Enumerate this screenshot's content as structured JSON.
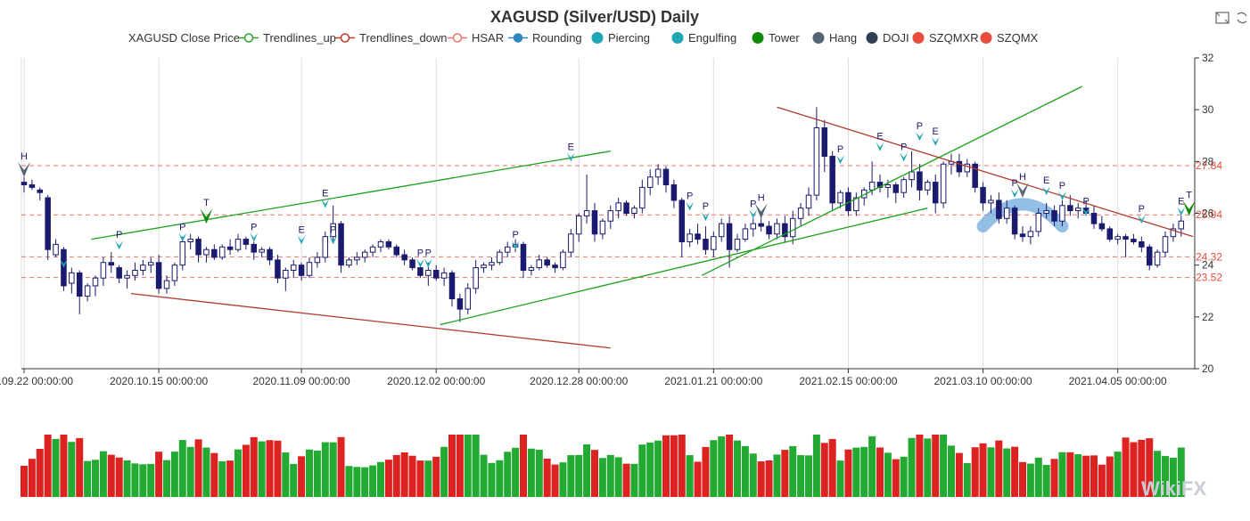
{
  "chart_data": {
    "type": "candlestick",
    "title": "XAGUSD (Silver/USD) Daily",
    "legend": [
      {
        "name": "XAGUSD Close Price",
        "style": "none",
        "color": "#333333"
      },
      {
        "name": "Trendlines_up",
        "style": "line-hollow",
        "color": "#2ca02c"
      },
      {
        "name": "Trendlines_down",
        "style": "line-hollow",
        "color": "#c0392b"
      },
      {
        "name": "HSAR",
        "style": "line-hollow",
        "color": "#e8736b"
      },
      {
        "name": "Rounding",
        "style": "line-filled",
        "color": "#2e86c1"
      },
      {
        "name": "Piercing",
        "style": "dot",
        "color": "#1fa7b3"
      },
      {
        "name": "Engulfing",
        "style": "dot",
        "color": "#1fa7b3"
      },
      {
        "name": "Tower",
        "style": "dot",
        "color": "#138a07"
      },
      {
        "name": "Hang",
        "style": "dot",
        "color": "#566573"
      },
      {
        "name": "DOJI",
        "style": "dot",
        "color": "#2e4053"
      },
      {
        "name": "SZQMXR",
        "style": "dot",
        "color": "#e74c3c"
      },
      {
        "name": "SZQMX",
        "style": "dot",
        "color": "#e74c3c"
      }
    ],
    "legend_position": "top-center",
    "y_axis": {
      "min": 20,
      "max": 32,
      "ticks": [
        20,
        22,
        24,
        26,
        28,
        30,
        32
      ],
      "position": "right"
    },
    "x_axis": {
      "ticks": [
        "2020.09.22 00:00:00",
        "2020.10.15 00:00:00",
        "2020.11.09 00:00:00",
        "2020.12.02 00:00:00",
        "2020.12.28 00:00:00",
        "2021.01.21 00:00:00",
        "2021.02.15 00:00:00",
        "2021.03.10 00:00:00",
        "2021.04.05 00:00:00"
      ]
    },
    "x_tick_bar_index": [
      0,
      17,
      35,
      52,
      70,
      87,
      104,
      121,
      138
    ],
    "bar_count": 148,
    "grid": {
      "vertical": true,
      "horizontal": false
    },
    "hsar_levels": [
      {
        "value": 27.84,
        "label": "27.84"
      },
      {
        "value": 25.94,
        "label": "25.94"
      },
      {
        "value": 24.32,
        "label": "24.32"
      },
      {
        "value": 23.52,
        "label": "23.52"
      }
    ],
    "trendlines_up": [
      {
        "x1": 8.5,
        "y1": 25.0,
        "x2": 74,
        "y2": 28.4
      },
      {
        "x1": 52.5,
        "y1": 21.7,
        "x2": 114,
        "y2": 26.2
      },
      {
        "x1": 85.5,
        "y1": 23.6,
        "x2": 133.5,
        "y2": 30.9
      }
    ],
    "trendlines_down": [
      {
        "x1": 13.5,
        "y1": 22.9,
        "x2": 74,
        "y2": 20.8
      },
      {
        "x1": 95,
        "y1": 30.1,
        "x2": 147.5,
        "y2": 25.1
      }
    ],
    "rounding": {
      "from_index": 121,
      "to_index": 131,
      "low": 25.5,
      "peak": 26.35
    },
    "markers": [
      {
        "type": "Hang",
        "letter": "H",
        "index": 0,
        "y": 27.4
      },
      {
        "type": "Piercing",
        "letter": "P",
        "index": 5,
        "y": 23.9
      },
      {
        "type": "Piercing",
        "letter": "P",
        "index": 12,
        "y": 24.6
      },
      {
        "type": "Piercing",
        "letter": "P",
        "index": 20,
        "y": 24.9
      },
      {
        "type": "Tower",
        "letter": "T",
        "index": 23,
        "y": 25.6
      },
      {
        "type": "Piercing",
        "letter": "P",
        "index": 29,
        "y": 24.9
      },
      {
        "type": "Engulfing",
        "letter": "E",
        "index": 35,
        "y": 24.8
      },
      {
        "type": "Engulfing",
        "letter": "E",
        "index": 38,
        "y": 26.2
      },
      {
        "type": "Piercing",
        "letter": "P",
        "index": 39,
        "y": 24.8
      },
      {
        "type": "Piercing",
        "letter": "P",
        "index": 50,
        "y": 23.9
      },
      {
        "type": "Piercing",
        "letter": "P",
        "index": 51,
        "y": 23.9
      },
      {
        "type": "Piercing",
        "letter": "P",
        "index": 62,
        "y": 24.6
      },
      {
        "type": "Engulfing",
        "letter": "E",
        "index": 69,
        "y": 28.0
      },
      {
        "type": "Piercing",
        "letter": "P",
        "index": 84,
        "y": 26.1
      },
      {
        "type": "Piercing",
        "letter": "P",
        "index": 86,
        "y": 25.7
      },
      {
        "type": "Piercing",
        "letter": "P",
        "index": 92,
        "y": 25.8
      },
      {
        "type": "Hang",
        "letter": "H",
        "index": 93,
        "y": 25.8
      },
      {
        "type": "Piercing",
        "letter": "P",
        "index": 103,
        "y": 27.9
      },
      {
        "type": "Engulfing",
        "letter": "E",
        "index": 108,
        "y": 28.4
      },
      {
        "type": "Piercing",
        "letter": "P",
        "index": 111,
        "y": 28.0
      },
      {
        "type": "Piercing",
        "letter": "P",
        "index": 113,
        "y": 28.8
      },
      {
        "type": "Engulfing",
        "letter": "E",
        "index": 115,
        "y": 28.6
      },
      {
        "type": "Piercing",
        "letter": "P",
        "index": 125,
        "y": 26.6
      },
      {
        "type": "Hang",
        "letter": "H",
        "index": 126,
        "y": 26.6
      },
      {
        "type": "Engulfing",
        "letter": "E",
        "index": 129,
        "y": 26.7
      },
      {
        "type": "Piercing",
        "letter": "P",
        "index": 131,
        "y": 26.5
      },
      {
        "type": "Piercing",
        "letter": "P",
        "index": 134,
        "y": 25.9
      },
      {
        "type": "Piercing",
        "letter": "P",
        "index": 141,
        "y": 25.6
      },
      {
        "type": "Engulfing",
        "letter": "E",
        "index": 146,
        "y": 25.9
      },
      {
        "type": "Tower",
        "letter": "T",
        "index": 147,
        "y": 25.9
      }
    ],
    "candles_ohlc": [
      [
        27.2,
        27.4,
        26.8,
        27.1
      ],
      [
        27.1,
        27.3,
        26.9,
        27.0
      ],
      [
        26.9,
        27.0,
        26.5,
        26.8
      ],
      [
        26.6,
        26.7,
        24.2,
        24.6
      ],
      [
        24.4,
        25.0,
        24.3,
        24.8
      ],
      [
        24.6,
        24.7,
        23.0,
        23.2
      ],
      [
        23.3,
        23.9,
        22.9,
        23.7
      ],
      [
        23.7,
        23.8,
        22.1,
        22.8
      ],
      [
        22.8,
        23.3,
        22.6,
        23.2
      ],
      [
        23.2,
        23.6,
        22.8,
        23.5
      ],
      [
        23.5,
        24.3,
        23.2,
        24.1
      ],
      [
        24.1,
        24.5,
        23.7,
        24.0
      ],
      [
        23.9,
        24.0,
        23.3,
        23.5
      ],
      [
        23.5,
        23.8,
        23.1,
        23.6
      ],
      [
        23.6,
        24.1,
        23.4,
        23.8
      ],
      [
        23.8,
        24.2,
        23.6,
        24.0
      ],
      [
        24.0,
        24.3,
        23.7,
        24.1
      ],
      [
        24.1,
        24.4,
        22.9,
        23.1
      ],
      [
        23.1,
        23.6,
        22.9,
        23.4
      ],
      [
        23.4,
        24.1,
        23.2,
        24.0
      ],
      [
        24.0,
        25.1,
        23.8,
        24.9
      ],
      [
        24.9,
        25.2,
        24.6,
        25.0
      ],
      [
        25.0,
        25.1,
        24.1,
        24.4
      ],
      [
        24.4,
        24.7,
        24.1,
        24.6
      ],
      [
        24.6,
        24.8,
        24.2,
        24.3
      ],
      [
        24.3,
        24.8,
        24.2,
        24.7
      ],
      [
        24.7,
        25.0,
        24.4,
        24.6
      ],
      [
        24.6,
        25.2,
        24.5,
        25.0
      ],
      [
        25.0,
        25.1,
        24.6,
        24.8
      ],
      [
        24.8,
        24.9,
        24.2,
        24.5
      ],
      [
        24.5,
        24.7,
        24.3,
        24.6
      ],
      [
        24.6,
        24.7,
        24.0,
        24.2
      ],
      [
        24.2,
        24.4,
        23.3,
        23.5
      ],
      [
        23.5,
        23.9,
        23.0,
        23.8
      ],
      [
        23.8,
        24.2,
        23.5,
        24.0
      ],
      [
        24.0,
        24.1,
        23.4,
        23.6
      ],
      [
        23.6,
        24.3,
        23.5,
        24.1
      ],
      [
        24.1,
        24.5,
        23.9,
        24.3
      ],
      [
        24.3,
        25.3,
        24.1,
        25.1
      ],
      [
        25.1,
        26.3,
        24.9,
        25.6
      ],
      [
        25.6,
        25.7,
        23.7,
        24.0
      ],
      [
        24.0,
        24.3,
        23.9,
        24.2
      ],
      [
        24.2,
        24.5,
        24.0,
        24.3
      ],
      [
        24.3,
        24.6,
        24.1,
        24.5
      ],
      [
        24.5,
        24.8,
        24.3,
        24.7
      ],
      [
        24.7,
        25.0,
        24.5,
        24.9
      ],
      [
        24.9,
        25.0,
        24.6,
        24.7
      ],
      [
        24.7,
        24.8,
        24.3,
        24.4
      ],
      [
        24.4,
        24.6,
        24.0,
        24.2
      ],
      [
        24.2,
        24.3,
        23.8,
        23.9
      ],
      [
        23.9,
        24.0,
        23.5,
        23.6
      ],
      [
        23.6,
        24.1,
        23.2,
        23.8
      ],
      [
        23.8,
        24.0,
        23.4,
        23.5
      ],
      [
        23.5,
        23.9,
        23.2,
        23.7
      ],
      [
        23.7,
        23.8,
        22.4,
        22.7
      ],
      [
        22.7,
        22.9,
        21.8,
        22.3
      ],
      [
        22.3,
        23.3,
        22.1,
        23.1
      ],
      [
        23.1,
        24.2,
        22.9,
        23.9
      ],
      [
        23.9,
        24.1,
        23.7,
        24.0
      ],
      [
        24.0,
        24.3,
        23.8,
        24.1
      ],
      [
        24.1,
        24.6,
        24.0,
        24.5
      ],
      [
        24.5,
        24.9,
        24.3,
        24.7
      ],
      [
        24.7,
        25.0,
        24.5,
        24.8
      ],
      [
        24.8,
        24.9,
        23.5,
        23.8
      ],
      [
        23.8,
        24.0,
        23.6,
        23.9
      ],
      [
        23.9,
        24.4,
        23.8,
        24.2
      ],
      [
        24.2,
        24.3,
        23.9,
        24.0
      ],
      [
        24.0,
        24.1,
        23.7,
        23.9
      ],
      [
        23.9,
        24.6,
        23.8,
        24.5
      ],
      [
        24.5,
        25.4,
        24.3,
        25.2
      ],
      [
        25.2,
        26.0,
        24.9,
        25.9
      ],
      [
        25.9,
        27.5,
        25.6,
        26.1
      ],
      [
        26.1,
        26.4,
        24.9,
        25.2
      ],
      [
        25.2,
        25.8,
        25.0,
        25.7
      ],
      [
        25.7,
        26.3,
        25.4,
        26.1
      ],
      [
        26.1,
        26.6,
        25.8,
        26.4
      ],
      [
        26.4,
        26.5,
        25.9,
        26.0
      ],
      [
        26.0,
        26.3,
        25.8,
        26.2
      ],
      [
        26.2,
        27.3,
        26.0,
        27.0
      ],
      [
        27.0,
        27.7,
        26.7,
        27.4
      ],
      [
        27.4,
        27.9,
        27.1,
        27.7
      ],
      [
        27.7,
        27.8,
        26.8,
        27.1
      ],
      [
        27.1,
        27.3,
        26.2,
        26.5
      ],
      [
        26.5,
        26.6,
        24.3,
        24.9
      ],
      [
        24.9,
        25.4,
        24.7,
        25.2
      ],
      [
        25.2,
        25.6,
        24.8,
        25.0
      ],
      [
        25.0,
        25.5,
        24.4,
        24.6
      ],
      [
        24.6,
        25.3,
        24.3,
        25.1
      ],
      [
        25.1,
        25.8,
        24.9,
        25.6
      ],
      [
        25.6,
        25.9,
        23.9,
        24.6
      ],
      [
        24.6,
        25.2,
        24.5,
        25.0
      ],
      [
        25.0,
        25.6,
        24.9,
        25.4
      ],
      [
        25.4,
        25.8,
        25.1,
        25.6
      ],
      [
        25.6,
        26.0,
        25.3,
        25.5
      ],
      [
        25.5,
        25.7,
        25.0,
        25.2
      ],
      [
        25.2,
        25.8,
        25.0,
        25.6
      ],
      [
        25.6,
        25.9,
        24.9,
        25.1
      ],
      [
        25.1,
        26.1,
        24.8,
        25.8
      ],
      [
        25.8,
        26.4,
        25.5,
        26.2
      ],
      [
        26.2,
        27.0,
        25.9,
        26.7
      ],
      [
        26.7,
        30.1,
        26.5,
        29.3
      ],
      [
        29.3,
        29.6,
        27.6,
        28.2
      ],
      [
        28.2,
        28.4,
        26.1,
        26.4
      ],
      [
        26.4,
        26.9,
        26.2,
        26.8
      ],
      [
        26.8,
        27.0,
        25.9,
        26.1
      ],
      [
        26.1,
        26.8,
        25.9,
        26.6
      ],
      [
        26.6,
        27.0,
        26.3,
        26.9
      ],
      [
        26.9,
        28.0,
        26.7,
        27.2
      ],
      [
        27.2,
        27.5,
        26.8,
        27.0
      ],
      [
        27.0,
        27.3,
        26.6,
        27.1
      ],
      [
        27.1,
        27.2,
        26.4,
        26.8
      ],
      [
        26.8,
        27.4,
        26.6,
        27.3
      ],
      [
        27.3,
        28.4,
        27.0,
        27.6
      ],
      [
        27.6,
        27.9,
        26.5,
        26.9
      ],
      [
        26.9,
        27.3,
        26.7,
        27.2
      ],
      [
        27.2,
        27.5,
        26.0,
        26.4
      ],
      [
        26.4,
        28.0,
        26.2,
        27.9
      ],
      [
        27.9,
        28.3,
        27.5,
        28.0
      ],
      [
        28.0,
        28.3,
        27.4,
        27.6
      ],
      [
        27.6,
        28.1,
        27.4,
        27.9
      ],
      [
        27.9,
        28.0,
        26.8,
        27.0
      ],
      [
        27.0,
        27.2,
        26.1,
        26.4
      ],
      [
        26.4,
        26.7,
        26.0,
        26.5
      ],
      [
        26.5,
        26.8,
        25.6,
        25.8
      ],
      [
        25.8,
        26.5,
        25.6,
        26.2
      ],
      [
        26.2,
        26.3,
        25.0,
        25.2
      ],
      [
        25.2,
        25.5,
        24.9,
        25.1
      ],
      [
        25.1,
        25.5,
        24.8,
        25.3
      ],
      [
        25.3,
        26.2,
        25.1,
        26.0
      ],
      [
        26.0,
        26.4,
        25.8,
        26.1
      ],
      [
        26.1,
        26.3,
        25.5,
        25.7
      ],
      [
        25.7,
        26.5,
        25.5,
        26.3
      ],
      [
        26.3,
        26.7,
        25.9,
        26.1
      ],
      [
        26.1,
        26.4,
        25.8,
        26.2
      ],
      [
        26.2,
        26.5,
        25.9,
        26.0
      ],
      [
        26.0,
        26.3,
        25.4,
        25.6
      ],
      [
        25.6,
        25.9,
        25.3,
        25.4
      ],
      [
        25.4,
        25.5,
        24.9,
        25.0
      ],
      [
        25.0,
        25.2,
        24.8,
        25.1
      ],
      [
        25.1,
        25.2,
        24.3,
        25.0
      ],
      [
        25.0,
        25.2,
        24.8,
        24.9
      ],
      [
        24.9,
        25.1,
        24.5,
        24.7
      ],
      [
        24.7,
        24.8,
        23.8,
        24.0
      ],
      [
        24.0,
        24.6,
        23.9,
        24.5
      ],
      [
        24.5,
        25.3,
        24.3,
        25.1
      ],
      [
        25.1,
        25.6,
        24.9,
        25.4
      ],
      [
        25.4,
        25.9,
        25.1,
        25.7
      ]
    ],
    "volume_colors": {
      "up": "#22aa33",
      "down": "#dd2222"
    }
  },
  "watermark": "WikiFX"
}
